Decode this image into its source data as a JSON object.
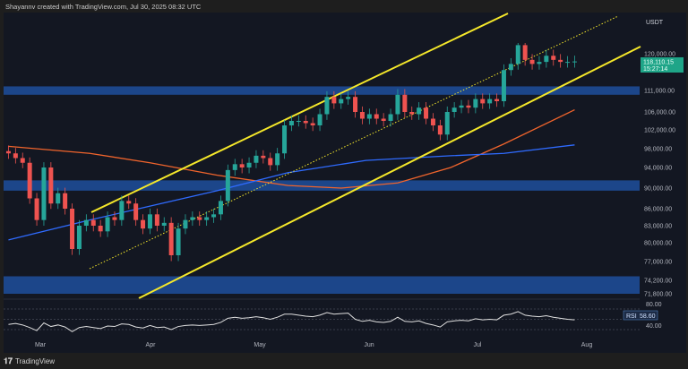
{
  "header": {
    "attribution": "Shayannv created with TradingView.com, Jul 30, 2025 08:32 UTC"
  },
  "footer": {
    "brand": "TradingView"
  },
  "chart_data": {
    "type": "candlestick",
    "currency_label": "USDT",
    "last_price": "118,110.15",
    "countdown": "15:27:14",
    "colors": {
      "up": "#26a69a",
      "down": "#ef5350",
      "zone": "#1e4f9c",
      "channel": "#f5e82a",
      "ma_fast": "#f0642c",
      "ma_slow": "#2f6bff",
      "rsi": "#e0e0e0",
      "price_tag": "#1fa588"
    },
    "price_ticks": [
      "120,000.00",
      "111,000.00",
      "106,000.00",
      "102,000.00",
      "98,000.00",
      "94,000.00",
      "90,000.00",
      "86,000.00",
      "83,000.00",
      "80,000.00",
      "77,000.00",
      "74,200.00",
      "71,800.00"
    ],
    "time_ticks": [
      "Mar",
      "Apr",
      "May",
      "Jun",
      "Jul",
      "Aug"
    ],
    "zones": [
      [
        110000,
        112000
      ],
      [
        89500,
        91500
      ],
      [
        71800,
        74800
      ]
    ],
    "closes": [
      [
        "2025-02-20",
        97000
      ],
      [
        "2025-02-22",
        96000
      ],
      [
        "2025-02-24",
        95000
      ],
      [
        "2025-02-26",
        88000
      ],
      [
        "2025-02-28",
        84000
      ],
      [
        "2025-03-02",
        94000
      ],
      [
        "2025-03-04",
        87000
      ],
      [
        "2025-03-06",
        89000
      ],
      [
        "2025-03-08",
        86000
      ],
      [
        "2025-03-10",
        79000
      ],
      [
        "2025-03-12",
        83000
      ],
      [
        "2025-03-14",
        84000
      ],
      [
        "2025-03-16",
        83000
      ],
      [
        "2025-03-18",
        82000
      ],
      [
        "2025-03-20",
        84500
      ],
      [
        "2025-03-22",
        84000
      ],
      [
        "2025-03-24",
        87500
      ],
      [
        "2025-03-26",
        87000
      ],
      [
        "2025-03-28",
        84000
      ],
      [
        "2025-03-30",
        82500
      ],
      [
        "2025-04-01",
        85000
      ],
      [
        "2025-04-03",
        83000
      ],
      [
        "2025-04-05",
        83500
      ],
      [
        "2025-04-07",
        78000
      ],
      [
        "2025-04-09",
        82500
      ],
      [
        "2025-04-11",
        84000
      ],
      [
        "2025-04-13",
        84500
      ],
      [
        "2025-04-15",
        84000
      ],
      [
        "2025-04-17",
        84500
      ],
      [
        "2025-04-19",
        85000
      ],
      [
        "2025-04-21",
        87500
      ],
      [
        "2025-04-23",
        93500
      ],
      [
        "2025-04-25",
        94700
      ],
      [
        "2025-04-27",
        94000
      ],
      [
        "2025-04-29",
        95000
      ],
      [
        "2025-05-01",
        96500
      ],
      [
        "2025-05-03",
        96000
      ],
      [
        "2025-05-05",
        94500
      ],
      [
        "2025-05-07",
        97000
      ],
      [
        "2025-05-09",
        103000
      ],
      [
        "2025-05-11",
        104000
      ],
      [
        "2025-05-13",
        104000
      ],
      [
        "2025-05-15",
        103500
      ],
      [
        "2025-05-17",
        103000
      ],
      [
        "2025-05-19",
        105500
      ],
      [
        "2025-05-21",
        109500
      ],
      [
        "2025-05-23",
        108000
      ],
      [
        "2025-05-25",
        109000
      ],
      [
        "2025-05-27",
        109500
      ],
      [
        "2025-05-29",
        106000
      ],
      [
        "2025-05-31",
        104500
      ],
      [
        "2025-06-02",
        105500
      ],
      [
        "2025-06-04",
        104500
      ],
      [
        "2025-06-06",
        104000
      ],
      [
        "2025-06-08",
        105500
      ],
      [
        "2025-06-10",
        110000
      ],
      [
        "2025-06-12",
        106000
      ],
      [
        "2025-06-14",
        105500
      ],
      [
        "2025-06-16",
        107000
      ],
      [
        "2025-06-18",
        104500
      ],
      [
        "2025-06-20",
        103000
      ],
      [
        "2025-06-22",
        101000
      ],
      [
        "2025-06-24",
        106000
      ],
      [
        "2025-06-26",
        107000
      ],
      [
        "2025-06-28",
        107500
      ],
      [
        "2025-06-30",
        107000
      ],
      [
        "2025-07-02",
        109000
      ],
      [
        "2025-07-04",
        108000
      ],
      [
        "2025-07-06",
        109000
      ],
      [
        "2025-07-08",
        108500
      ],
      [
        "2025-07-10",
        116000
      ],
      [
        "2025-07-12",
        117500
      ],
      [
        "2025-07-14",
        122000
      ],
      [
        "2025-07-16",
        118500
      ],
      [
        "2025-07-18",
        117500
      ],
      [
        "2025-07-20",
        118000
      ],
      [
        "2025-07-22",
        119500
      ],
      [
        "2025-07-24",
        118500
      ],
      [
        "2025-07-26",
        118000
      ],
      [
        "2025-07-28",
        118000
      ],
      [
        "2025-07-30",
        118110
      ]
    ],
    "ma_orange": [
      [
        "2025-02-20",
        98500
      ],
      [
        "2025-03-15",
        97000
      ],
      [
        "2025-04-01",
        95000
      ],
      [
        "2025-04-20",
        92500
      ],
      [
        "2025-05-10",
        90500
      ],
      [
        "2025-05-25",
        90000
      ],
      [
        "2025-06-10",
        91000
      ],
      [
        "2025-06-25",
        94000
      ],
      [
        "2025-07-10",
        99000
      ],
      [
        "2025-07-30",
        106500
      ]
    ],
    "ma_blue": [
      [
        "2025-02-20",
        80500
      ],
      [
        "2025-03-15",
        84000
      ],
      [
        "2025-04-01",
        86500
      ],
      [
        "2025-04-20",
        89500
      ],
      [
        "2025-05-10",
        93000
      ],
      [
        "2025-06-01",
        95500
      ],
      [
        "2025-06-25",
        96500
      ],
      [
        "2025-07-10",
        97000
      ],
      [
        "2025-07-30",
        98800
      ]
    ],
    "rsi": {
      "label": "RSI",
      "value": "58.60",
      "ticks": [
        "80.00",
        "40.00"
      ],
      "values": [
        50,
        52,
        49,
        44,
        38,
        53,
        46,
        49,
        45,
        36,
        44,
        46,
        44,
        42,
        47,
        46,
        51,
        50,
        45,
        43,
        48,
        44,
        45,
        40,
        46,
        48,
        49,
        48,
        49,
        50,
        54,
        62,
        64,
        62,
        63,
        65,
        63,
        60,
        64,
        70,
        70,
        68,
        66,
        65,
        68,
        73,
        70,
        71,
        72,
        60,
        56,
        58,
        55,
        54,
        56,
        64,
        56,
        55,
        57,
        52,
        49,
        45,
        55,
        57,
        58,
        57,
        61,
        59,
        60,
        59,
        68,
        70,
        75,
        68,
        66,
        65,
        67,
        64,
        62,
        60,
        59
      ]
    }
  }
}
